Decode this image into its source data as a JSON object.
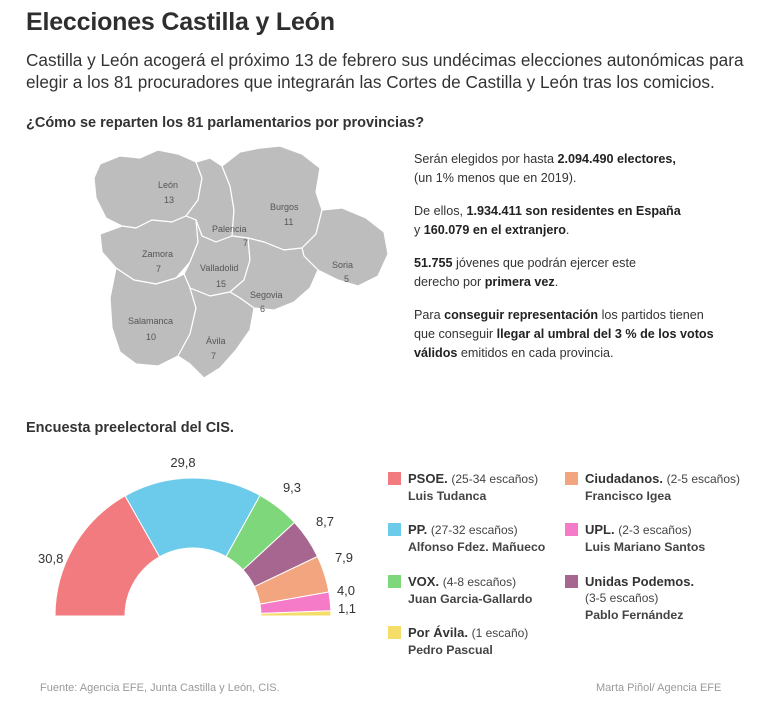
{
  "header": {
    "title": "Elecciones Castilla y León",
    "intro": "Castilla y León acogerá el próximo 13 de febrero sus undécimas elecciones autonómicas para elegir a los 81 procuradores que integrarán las Cortes de Castilla y León tras los comicios.",
    "question": "¿Cómo se reparten los 81 parlamentarios por provincias?"
  },
  "map": {
    "provinces": [
      {
        "name": "León",
        "seats": "13"
      },
      {
        "name": "Burgos",
        "seats": "11"
      },
      {
        "name": "Palencia",
        "seats": "7"
      },
      {
        "name": "Zamora",
        "seats": "7"
      },
      {
        "name": "Valladolid",
        "seats": "15"
      },
      {
        "name": "Soria",
        "seats": "5"
      },
      {
        "name": "Segovia",
        "seats": "6"
      },
      {
        "name": "Salamanca",
        "seats": "10"
      },
      {
        "name": "Ávila",
        "seats": "7"
      }
    ]
  },
  "facts": {
    "p1_a": "Serán elegidos por hasta ",
    "p1_b": "2.094.490 electores,",
    "p1_c": "(un 1% menos que en 2019).",
    "p2_a": "De ellos, ",
    "p2_b": "1.934.411 son residentes en España",
    "p2_c": "y ",
    "p2_d": "160.079 en el extranjero",
    "p2_e": ".",
    "p3_a": "51.755",
    "p3_b": " jóvenes que podrán ejercer este",
    "p3_c": "derecho por ",
    "p3_d": "primera vez",
    "p3_e": ".",
    "p4_a": "Para ",
    "p4_b": "conseguir representación",
    "p4_c": " los partidos tienen",
    "p4_d": "que conseguir ",
    "p4_e": "llegar al umbral del 3 % de los votos",
    "p4_f": "válidos",
    "p4_g": " emitidos en cada provincia."
  },
  "survey_title": "Encuesta preelectoral del CIS.",
  "chart_data": {
    "type": "pie",
    "subtype": "semicircle-donut",
    "categories": [
      "PSOE",
      "PP",
      "VOX",
      "Unidas Podemos",
      "Ciudadanos",
      "UPL",
      "Por Ávila"
    ],
    "values": [
      30.8,
      29.8,
      9.3,
      8.7,
      7.9,
      4.0,
      1.1
    ],
    "value_labels": [
      "30,8",
      "29,8",
      "9,3",
      "8,7",
      "7,9",
      "4,0",
      "1,1"
    ],
    "colors": [
      "#f27b7f",
      "#6ccbeb",
      "#7ed87b",
      "#a6668f",
      "#f2a57f",
      "#f57ac8",
      "#f5dd6a"
    ]
  },
  "legend": [
    {
      "party": "PSOE.",
      "seats": "(25-34 escaños)",
      "candidate": "Luis Tudanca",
      "color": "#f27b7f"
    },
    {
      "party": "PP.",
      "seats": "(27-32 escaños)",
      "candidate": "Alfonso Fdez. Mañueco",
      "color": "#6ccbeb"
    },
    {
      "party": "VOX.",
      "seats": "(4-8 escaños)",
      "candidate": "Juan Garcia-Gallardo",
      "color": "#7ed87b"
    },
    {
      "party": "Por Ávila.",
      "seats": "(1 escaño)",
      "candidate": "Pedro Pascual",
      "color": "#f5dd6a"
    },
    {
      "party": "Ciudadanos.",
      "seats": "(2-5 escaños)",
      "candidate": "Francisco Igea",
      "color": "#f2a57f"
    },
    {
      "party": "UPL.",
      "seats": "(2-3 escaños)",
      "candidate": "Luis Mariano Santos",
      "color": "#f57ac8"
    },
    {
      "party": "Unidas Podemos.",
      "seats": "(3-5 escaños)",
      "candidate": "Pablo Fernández",
      "color": "#a6668f"
    }
  ],
  "footer": {
    "source": "Fuente: Agencia EFE, Junta Castilla y León, CIS.",
    "credit": "Marta Piñol/ Agencia EFE"
  }
}
